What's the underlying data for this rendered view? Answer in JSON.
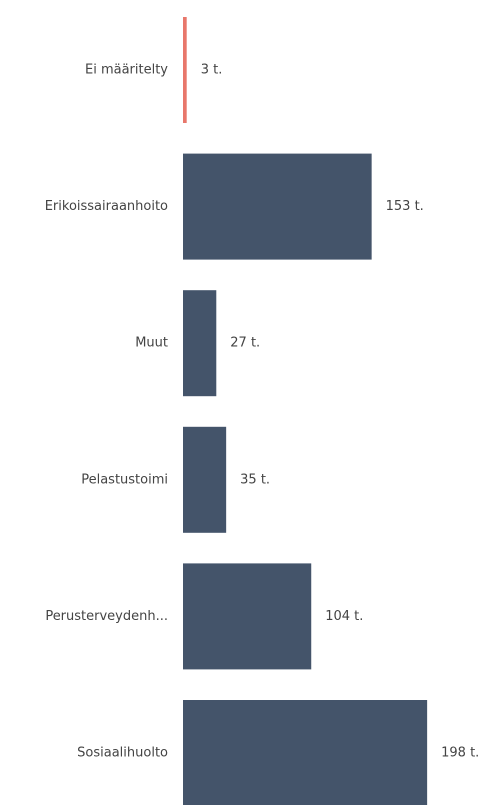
{
  "chart_data": {
    "type": "barh",
    "categories": [
      "Ei määritelty",
      "Erikoissairaanhoito",
      "Muut",
      "Pelastustoimi",
      "Perusterveydenh...",
      "Sosiaalihuolto"
    ],
    "values": [
      3,
      153,
      27,
      35,
      104,
      198
    ],
    "value_labels": [
      "3 t.",
      "153 t.",
      "27 t.",
      "35 t.",
      "104 t.",
      "198 t."
    ],
    "colors": [
      "#e8776b",
      "#44546a",
      "#44546a",
      "#44546a",
      "#44546a",
      "#44546a"
    ]
  }
}
